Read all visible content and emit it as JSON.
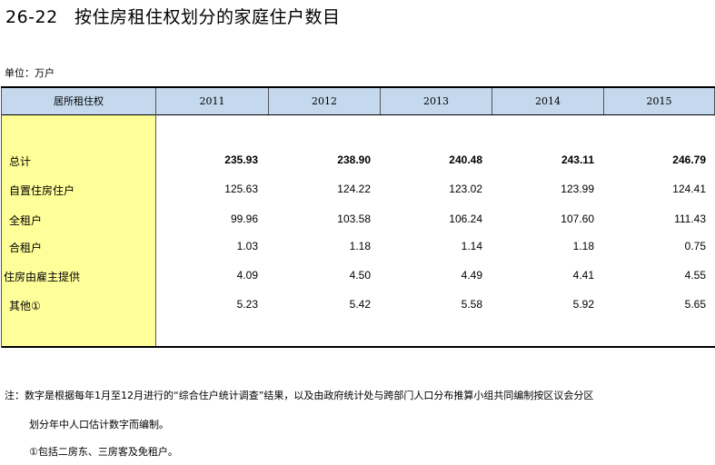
{
  "title": {
    "number": "26-22",
    "text": "按住房租住权划分的家庭住户数目"
  },
  "unit_label": "单位：万户",
  "table": {
    "corner_header": "居所租住权",
    "years": [
      "2011",
      "2012",
      "2013",
      "2014",
      "2015"
    ],
    "rows": [
      {
        "label": "总计",
        "values": [
          "235.93",
          "238.90",
          "240.48",
          "243.11",
          "246.79"
        ],
        "bold": true
      },
      {
        "label": "自置住房住户",
        "values": [
          "125.63",
          "124.22",
          "123.02",
          "123.99",
          "124.41"
        ]
      },
      {
        "label": "全租户",
        "values": [
          "99.96",
          "103.58",
          "106.24",
          "107.60",
          "111.43"
        ]
      },
      {
        "label": "合租户",
        "values": [
          "1.03",
          "1.18",
          "1.14",
          "1.18",
          "0.75"
        ]
      },
      {
        "label": "住房由雇主提供",
        "values": [
          "4.09",
          "4.50",
          "4.49",
          "4.41",
          "4.55"
        ]
      },
      {
        "label": "其他①",
        "values": [
          "5.23",
          "5.42",
          "5.58",
          "5.92",
          "5.65"
        ]
      }
    ]
  },
  "notes": {
    "line1": "注：数字是根据每年1月至12月进行的“综合住户统计调查”结果，以及由政府统计处与跨部门人口分布推算小组共同编制按区议会分区",
    "line2": "划分年中人口估计数字而编制。",
    "line3": "①包括二房东、三房客及免租户。"
  }
}
